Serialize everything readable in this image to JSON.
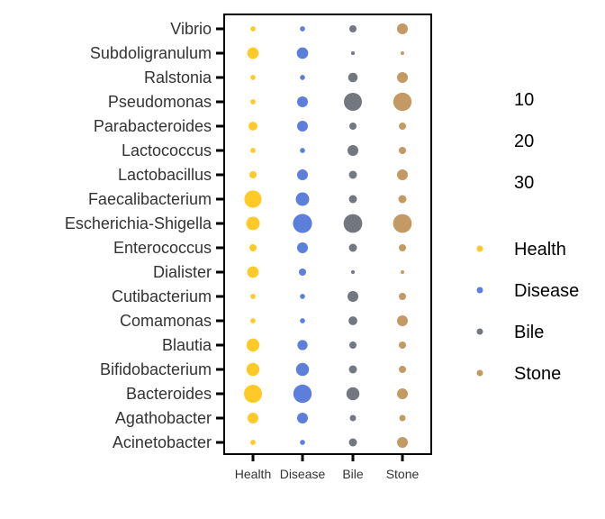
{
  "chart_data": {
    "type": "scatter",
    "title": "",
    "xlabel": "",
    "ylabel": "",
    "categories": [
      "Health",
      "Disease",
      "Bile",
      "Stone"
    ],
    "taxa": [
      "Vibrio",
      "Subdoligranulum",
      "Ralstonia",
      "Pseudomonas",
      "Parabacteroides",
      "Lactococcus",
      "Lactobacillus",
      "Faecalibacterium",
      "Escherichia-Shigella",
      "Enterococcus",
      "Dialister",
      "Cutibacterium",
      "Comamonas",
      "Blautia",
      "Bifidobacterium",
      "Bacteroides",
      "Agathobacter",
      "Acinetobacter"
    ],
    "colors": {
      "Health": "#FFC928",
      "Disease": "#5B7FDB",
      "Bile": "#737880",
      "Stone": "#C49A64"
    },
    "series": [
      {
        "name": "Health",
        "values": [
          2,
          10,
          2,
          2,
          6,
          2,
          4,
          23,
          14,
          4,
          10,
          2,
          2,
          13,
          13,
          25,
          9,
          2
        ]
      },
      {
        "name": "Disease",
        "values": [
          2,
          10,
          2,
          9,
          9,
          2,
          9,
          14,
          28,
          9,
          4,
          2,
          2,
          8,
          13,
          26,
          9,
          2
        ]
      },
      {
        "name": "Bile",
        "values": [
          4,
          1,
          7,
          25,
          4,
          9,
          5,
          5,
          27,
          5,
          1,
          9,
          6,
          4,
          5,
          13,
          3,
          5
        ]
      },
      {
        "name": "Stone",
        "values": [
          9,
          1,
          9,
          26,
          4,
          4,
          9,
          5,
          27,
          4,
          1,
          4,
          9,
          4,
          4,
          9,
          3,
          9
        ]
      }
    ],
    "size_legend": {
      "breaks": [
        "10",
        "20",
        "30"
      ]
    },
    "color_legend": {
      "entries": [
        "Health",
        "Disease",
        "Bile",
        "Stone"
      ]
    },
    "grid": false,
    "legend_position": "right"
  }
}
